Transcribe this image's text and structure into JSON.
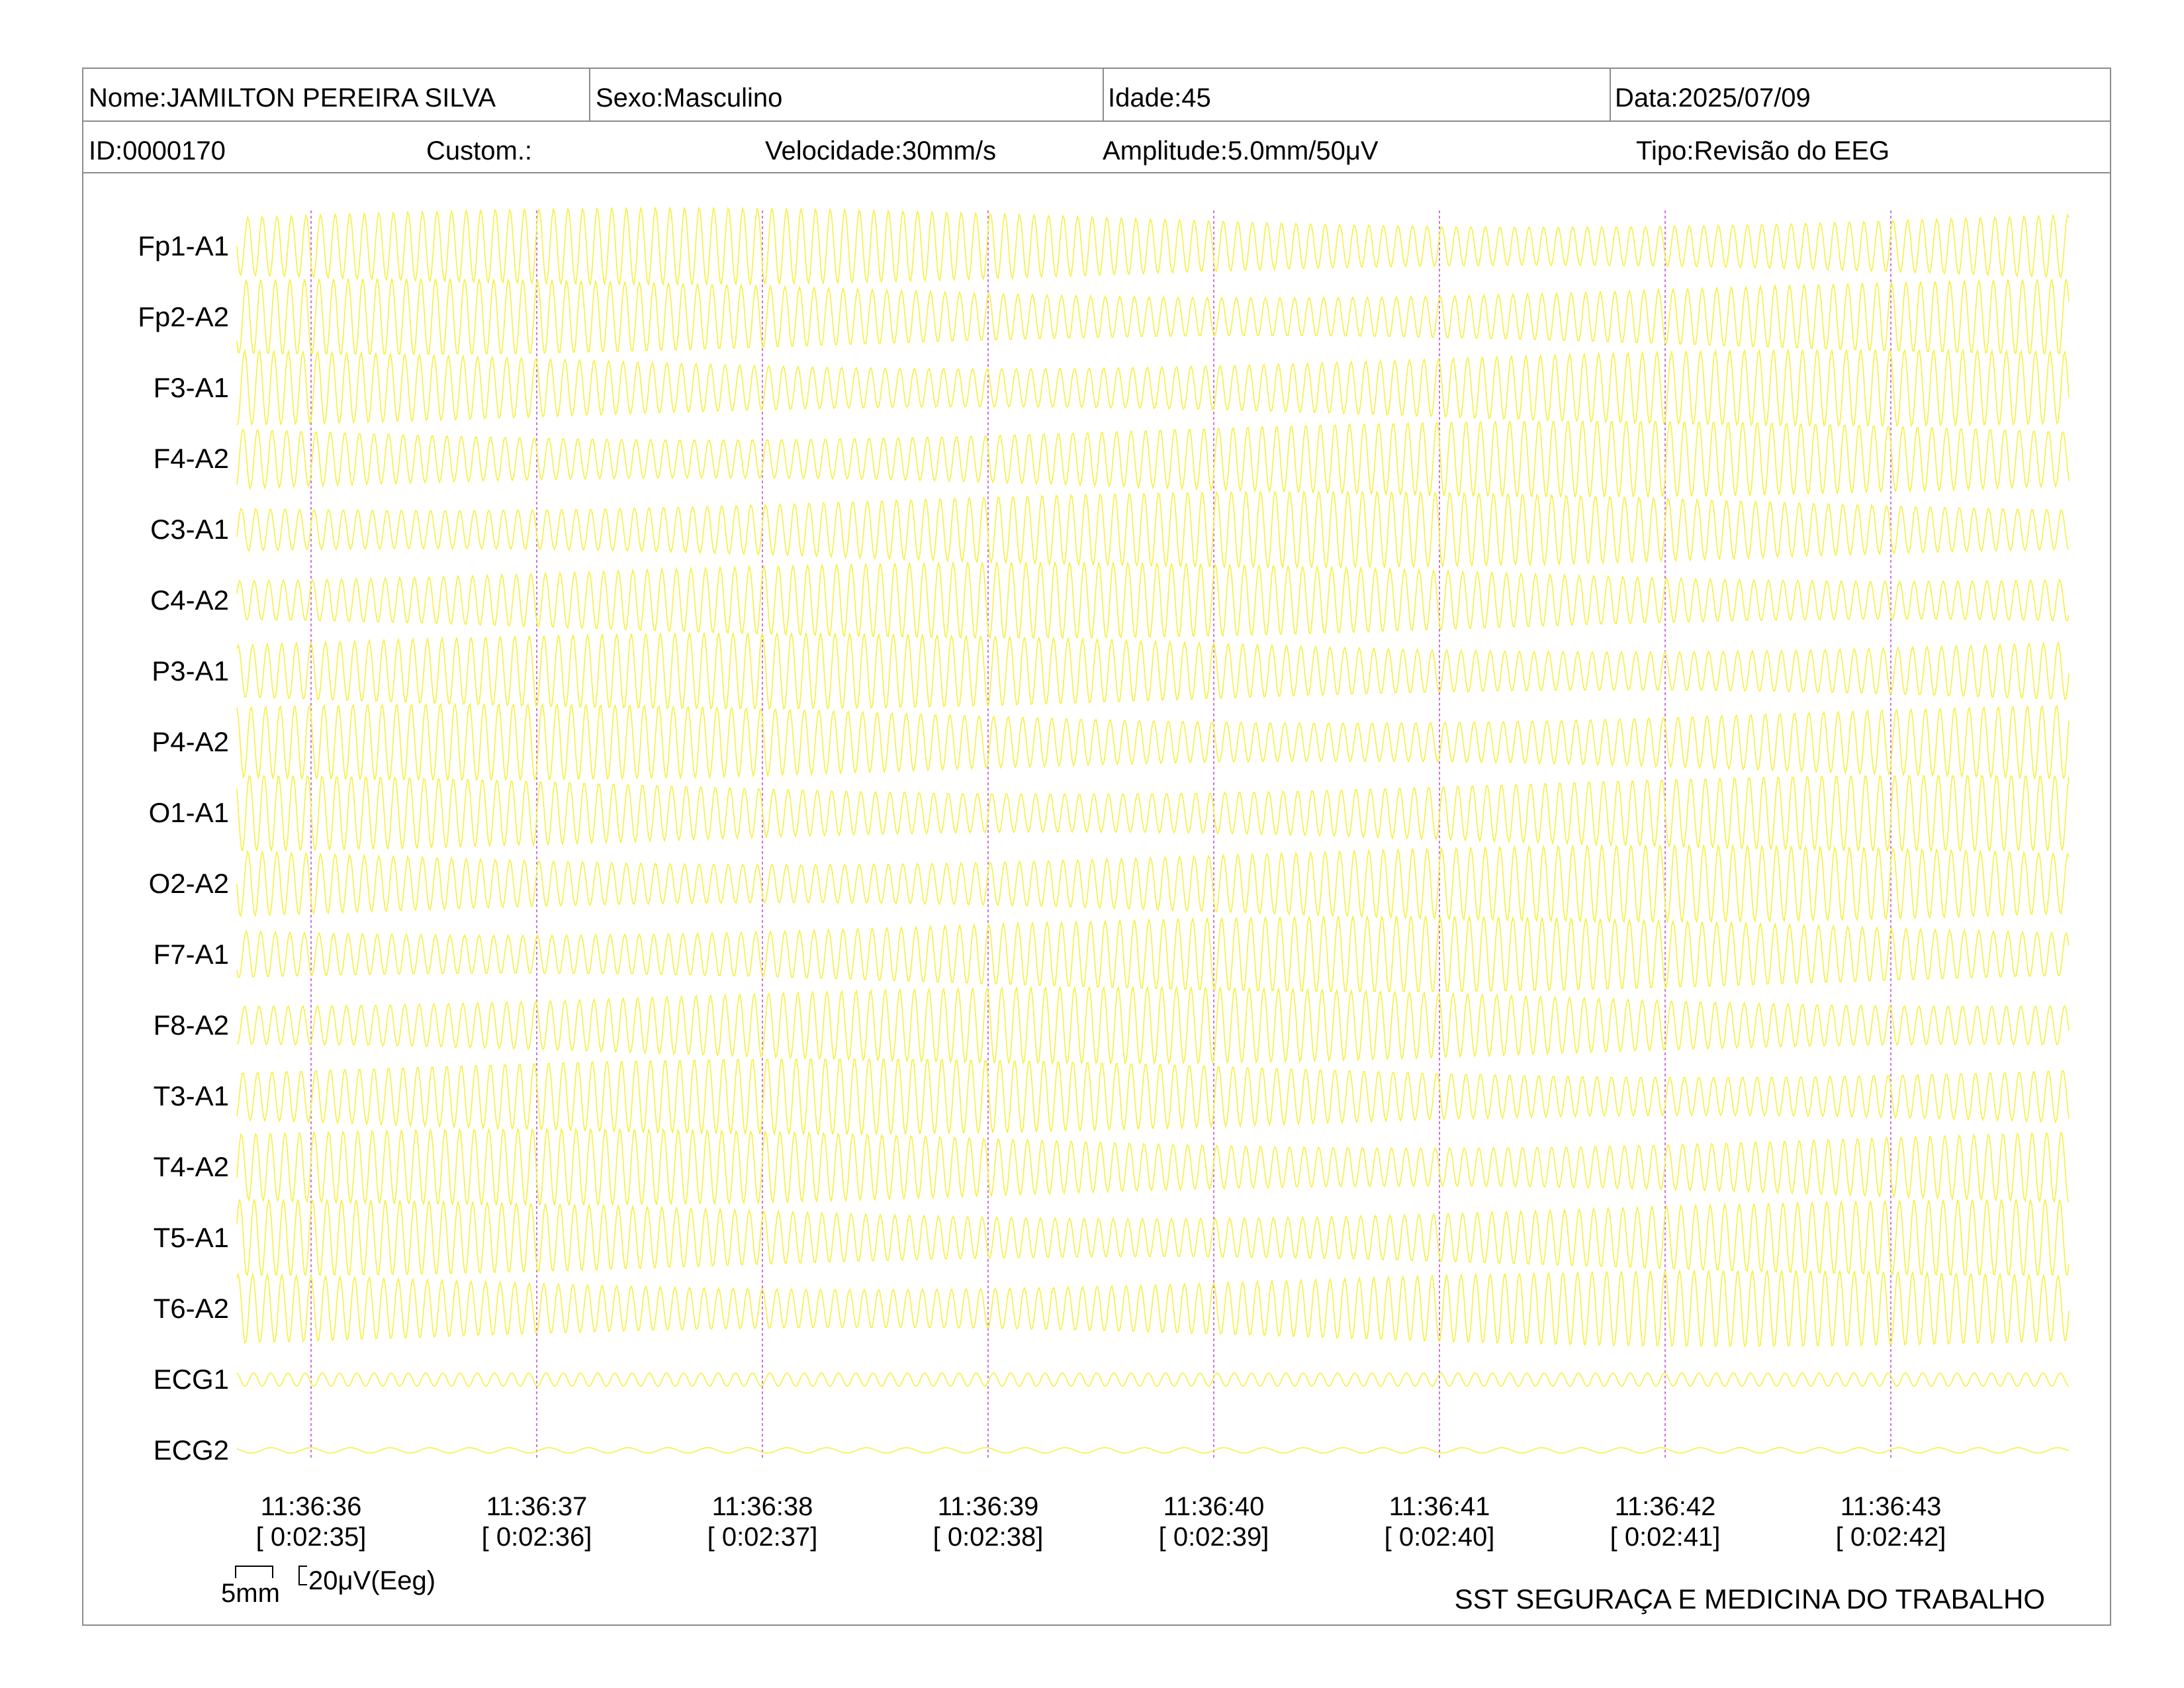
{
  "header": {
    "name": "Nome:JAMILTON PEREIRA SILVA",
    "sex": "Sexo:Masculino",
    "age": "Idade:45",
    "date": "Data:2025/07/09",
    "id": "ID:0000170",
    "custom": "Custom.:",
    "speed": "Velocidade:30mm/s",
    "amplitude": "Amplitude:5.0mm/50μV",
    "type": "Tipo:Revisão do EEG"
  },
  "channels": [
    {
      "label": "Fp1-A1"
    },
    {
      "label": "Fp2-A2"
    },
    {
      "label": "F3-A1"
    },
    {
      "label": "F4-A2"
    },
    {
      "label": "C3-A1"
    },
    {
      "label": "C4-A2"
    },
    {
      "label": "P3-A1"
    },
    {
      "label": "P4-A2"
    },
    {
      "label": "O1-A1"
    },
    {
      "label": "O2-A2"
    },
    {
      "label": "F7-A1"
    },
    {
      "label": "F8-A2"
    },
    {
      "label": "T3-A1"
    },
    {
      "label": "T4-A2"
    },
    {
      "label": "T5-A1"
    },
    {
      "label": "T6-A2"
    },
    {
      "label": "ECG1"
    },
    {
      "label": "ECG2"
    }
  ],
  "time_marks": [
    {
      "clock": "11:36:36",
      "elapsed": "[ 0:02:35]"
    },
    {
      "clock": "11:36:37",
      "elapsed": "[ 0:02:36]"
    },
    {
      "clock": "11:36:38",
      "elapsed": "[ 0:02:37]"
    },
    {
      "clock": "11:36:39",
      "elapsed": "[ 0:02:38]"
    },
    {
      "clock": "11:36:40",
      "elapsed": "[ 0:02:39]"
    },
    {
      "clock": "11:36:41",
      "elapsed": "[ 0:02:40]"
    },
    {
      "clock": "11:36:42",
      "elapsed": "[ 0:02:41]"
    },
    {
      "clock": "11:36:43",
      "elapsed": "[ 0:02:42]"
    }
  ],
  "scale": {
    "time_label": "5mm",
    "amplitude_label": "20μV(Eeg)"
  },
  "footer": {
    "organization": "SST SEGURAÇA E MEDICINA DO TRABALHO"
  },
  "colors": {
    "trace": "#f5f040",
    "marker": "#d070e0",
    "border": "#8c8c8c"
  }
}
